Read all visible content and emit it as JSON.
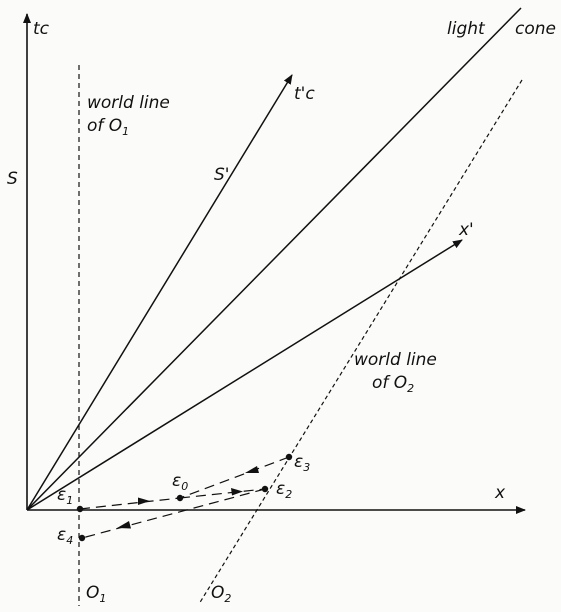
{
  "axes": {
    "time_axis_label": "tc",
    "space_axis_label": "x",
    "frame_S_label": "S",
    "moving_time_axis_label": "t'c",
    "moving_space_axis_label": "x'",
    "frame_S_prime_label": "S'"
  },
  "light_cone": {
    "label_part1": "light",
    "label_part2": "cone"
  },
  "observer_1": {
    "world_line_label_line1": "world line",
    "world_line_label_line2_prefix": "of O",
    "world_line_label_line2_sub": "1",
    "foot_label_prefix": "O",
    "foot_label_sub": "1"
  },
  "observer_2": {
    "world_line_label_line1": "world line",
    "world_line_label_line2_prefix": "of O",
    "world_line_label_line2_sub": "2",
    "foot_label_prefix": "O",
    "foot_label_sub": "2"
  },
  "events": [
    {
      "symbol": "ε",
      "sub": "0"
    },
    {
      "symbol": "ε",
      "sub": "1"
    },
    {
      "symbol": "ε",
      "sub": "2"
    },
    {
      "symbol": "ε",
      "sub": "3"
    },
    {
      "symbol": "ε",
      "sub": "4"
    }
  ],
  "colors": {
    "ink": "#111111",
    "paper": "#fbfbfa"
  }
}
